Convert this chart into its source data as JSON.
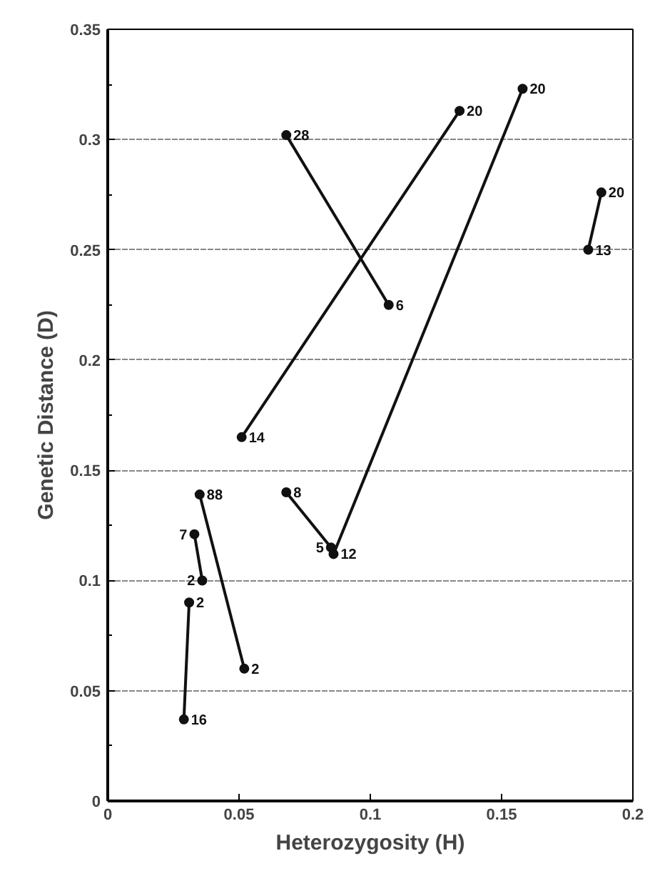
{
  "chart_data": {
    "type": "line",
    "xlabel": "Heterozygosity (H)",
    "ylabel": "Genetic Distance (D)",
    "xlim": [
      0,
      0.2
    ],
    "xticks": [
      0,
      0.05,
      0.1,
      0.15,
      0.2
    ],
    "ylim": [
      0,
      0.35
    ],
    "yticks": [
      0,
      0.05,
      0.1,
      0.15,
      0.2,
      0.25,
      0.3,
      0.35
    ],
    "grid": "y",
    "marker": "circle",
    "line_style": "solid",
    "series": [
      {
        "color": "#111111",
        "x": [
          0.068,
          0.107
        ],
        "values": [
          0.302,
          0.225
        ]
      },
      {
        "color": "#111111",
        "x": [
          0.051,
          0.134
        ],
        "values": [
          0.165,
          0.313
        ]
      },
      {
        "color": "#111111",
        "x": [
          0.068,
          0.085
        ],
        "values": [
          0.14,
          0.115
        ]
      },
      {
        "color": "#111111",
        "x": [
          0.086,
          0.158
        ],
        "values": [
          0.112,
          0.323
        ]
      },
      {
        "color": "#111111",
        "x": [
          0.035,
          0.052
        ],
        "values": [
          0.139,
          0.06
        ]
      },
      {
        "color": "#111111",
        "x": [
          0.033,
          0.036
        ],
        "values": [
          0.121,
          0.1
        ]
      },
      {
        "color": "#111111",
        "x": [
          0.031,
          0.029
        ],
        "values": [
          0.09,
          0.037
        ]
      },
      {
        "color": "#111111",
        "x": [
          0.183,
          0.188
        ],
        "values": [
          0.25,
          0.276
        ]
      }
    ],
    "annotations": [
      {
        "text": "28",
        "x": 0.068,
        "y": 0.302
      },
      {
        "text": "6",
        "x": 0.107,
        "y": 0.225
      },
      {
        "text": "14",
        "x": 0.051,
        "y": 0.165
      },
      {
        "text": "20",
        "x": 0.134,
        "y": 0.313
      },
      {
        "text": "8",
        "x": 0.068,
        "y": 0.14
      },
      {
        "text": "5",
        "x": 0.085,
        "y": 0.115
      },
      {
        "text": "12",
        "x": 0.086,
        "y": 0.112
      },
      {
        "text": "20",
        "x": 0.158,
        "y": 0.323
      },
      {
        "text": "88",
        "x": 0.035,
        "y": 0.139
      },
      {
        "text": "2",
        "x": 0.052,
        "y": 0.06
      },
      {
        "text": "7",
        "x": 0.033,
        "y": 0.121
      },
      {
        "text": "2",
        "x": 0.036,
        "y": 0.1
      },
      {
        "text": "2",
        "x": 0.031,
        "y": 0.09
      },
      {
        "text": "16",
        "x": 0.029,
        "y": 0.037
      },
      {
        "text": "13",
        "x": 0.183,
        "y": 0.25
      },
      {
        "text": "20",
        "x": 0.188,
        "y": 0.276
      }
    ]
  }
}
